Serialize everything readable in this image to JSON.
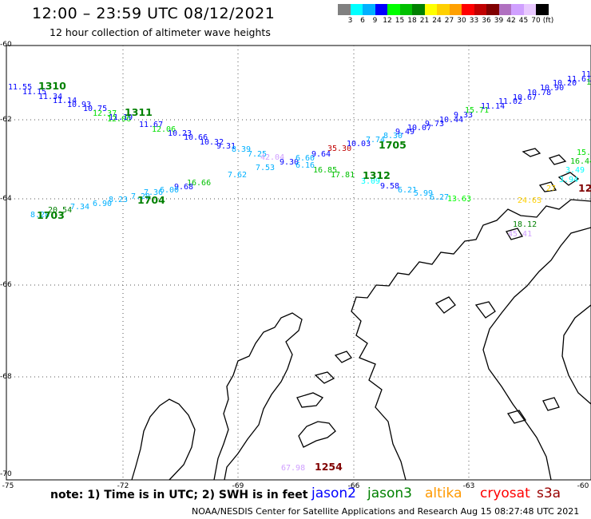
{
  "header": {
    "title": "12:00 – 23:59 UTC 08/12/2021",
    "subtitle": "12 hour collection of altimeter wave heights"
  },
  "colorbar": {
    "colors": [
      "#808080",
      "#00ffff",
      "#00b0ff",
      "#0000ff",
      "#00ff00",
      "#00c000",
      "#008000",
      "#ffff00",
      "#ffd000",
      "#ffa000",
      "#ff0000",
      "#c00000",
      "#800000",
      "#b070c0",
      "#d0a0ff",
      "#e8c8ff",
      "#000000"
    ],
    "labels": [
      "3",
      "6",
      "9",
      "12",
      "15",
      "18",
      "21",
      "24",
      "27",
      "30",
      "33",
      "36",
      "39",
      "42",
      "45",
      "70",
      "(ft)"
    ]
  },
  "axes": {
    "lat_labels": [
      "-60",
      "-62",
      "-64",
      "-66",
      "-68",
      "-70"
    ],
    "lon_labels": [
      "-75",
      "-72",
      "-69",
      "-66",
      "-63",
      "-60"
    ]
  },
  "observations": [
    {
      "text": "11.55",
      "color": "#0000ff"
    },
    {
      "text": "11.15",
      "color": "#0000ff"
    },
    {
      "text": "11.34",
      "color": "#0000ff"
    },
    {
      "text": "11.14",
      "color": "#0000ff"
    },
    {
      "text": "10.93",
      "color": "#0000ff"
    },
    {
      "text": "10.75",
      "color": "#0000ff"
    },
    {
      "text": "12.37",
      "color": "#00e000"
    },
    {
      "text": "12.06",
      "color": "#00e000"
    },
    {
      "text": "11.19",
      "color": "#0000ff"
    },
    {
      "text": "11.67",
      "color": "#0000ff"
    },
    {
      "text": "12.06",
      "color": "#00e000"
    },
    {
      "text": "10.23",
      "color": "#0000ff"
    },
    {
      "text": "10.66",
      "color": "#0000ff"
    },
    {
      "text": "10.32",
      "color": "#0000ff"
    },
    {
      "text": "9.31",
      "color": "#0000ff"
    },
    {
      "text": "8.39",
      "color": "#00b0ff"
    },
    {
      "text": "7.25",
      "color": "#00b0ff"
    },
    {
      "text": "42.04",
      "color": "#d0a0ff"
    },
    {
      "text": "9.30",
      "color": "#0000ff"
    },
    {
      "text": "6.60",
      "color": "#00b0ff"
    },
    {
      "text": "9.64",
      "color": "#0000ff"
    },
    {
      "text": "35.30",
      "color": "#c00000"
    },
    {
      "text": "10.03",
      "color": "#0000ff"
    },
    {
      "text": "7.74",
      "color": "#00b0ff"
    },
    {
      "text": "8.30",
      "color": "#00b0ff"
    },
    {
      "text": "9.49",
      "color": "#0000ff"
    },
    {
      "text": "10.07",
      "color": "#0000ff"
    },
    {
      "text": "9.73",
      "color": "#0000ff"
    },
    {
      "text": "10.44",
      "color": "#0000ff"
    },
    {
      "text": "9.33",
      "color": "#0000ff"
    },
    {
      "text": "15.71",
      "color": "#00e000"
    },
    {
      "text": "11.14",
      "color": "#0000ff"
    },
    {
      "text": "11.02",
      "color": "#0000ff"
    },
    {
      "text": "10.67",
      "color": "#0000ff"
    },
    {
      "text": "10.78",
      "color": "#0000ff"
    },
    {
      "text": "10.90",
      "color": "#0000ff"
    },
    {
      "text": "10.20",
      "color": "#0000ff"
    },
    {
      "text": "11.61",
      "color": "#0000ff"
    },
    {
      "text": "11",
      "color": "#0000ff"
    },
    {
      "text": "7.53",
      "color": "#00b0ff"
    },
    {
      "text": "6.16",
      "color": "#00b0ff"
    },
    {
      "text": "16.85",
      "color": "#00c000"
    },
    {
      "text": "17.81",
      "color": "#00c000"
    },
    {
      "text": "7.62",
      "color": "#00b0ff"
    },
    {
      "text": "3.09",
      "color": "#00ffff"
    },
    {
      "text": "9.58",
      "color": "#0000ff"
    },
    {
      "text": "6.21",
      "color": "#00b0ff"
    },
    {
      "text": "5.99",
      "color": "#00b0ff"
    },
    {
      "text": "6.27",
      "color": "#00b0ff"
    },
    {
      "text": "13.63",
      "color": "#00ff00"
    },
    {
      "text": "16.66",
      "color": "#00c000"
    },
    {
      "text": "9.68",
      "color": "#0000ff"
    },
    {
      "text": "6.00",
      "color": "#00b0ff"
    },
    {
      "text": "7.36",
      "color": "#00b0ff"
    },
    {
      "text": "7.20",
      "color": "#00b0ff"
    },
    {
      "text": "8.23",
      "color": "#00b0ff"
    },
    {
      "text": "6.90",
      "color": "#00b0ff"
    },
    {
      "text": "7.34",
      "color": "#00b0ff"
    },
    {
      "text": "20.54",
      "color": "#008000"
    },
    {
      "text": "8.28",
      "color": "#00b0ff"
    },
    {
      "text": "15.9",
      "color": "#00e000"
    },
    {
      "text": "16.44",
      "color": "#00c000"
    },
    {
      "text": "3.49",
      "color": "#00ffff"
    },
    {
      "text": "3.94",
      "color": "#00ffff"
    },
    {
      "text": "27",
      "color": "#ffd000"
    },
    {
      "text": "24.63",
      "color": "#ffd000"
    },
    {
      "text": "18.12",
      "color": "#008000"
    },
    {
      "text": "45.41",
      "color": "#d0a0ff"
    },
    {
      "text": "67.98",
      "color": "#d0a0ff"
    },
    {
      "text": "16",
      "color": "#00c000"
    }
  ],
  "pass_times": [
    {
      "text": "1310",
      "color": "#008000"
    },
    {
      "text": "1311",
      "color": "#008000"
    },
    {
      "text": "1705",
      "color": "#008000"
    },
    {
      "text": "1312",
      "color": "#008000"
    },
    {
      "text": "1704",
      "color": "#008000"
    },
    {
      "text": "1703",
      "color": "#008000"
    },
    {
      "text": "12",
      "color": "#800000"
    },
    {
      "text": "1254",
      "color": "#800000"
    }
  ],
  "footer": {
    "note": "note:  1) Time is in UTC; 2) SWH is in feet",
    "satellites": [
      {
        "name": "jason2",
        "color": "#0000ff"
      },
      {
        "name": "jason3",
        "color": "#008000"
      },
      {
        "name": "altika",
        "color": "#ff9900"
      },
      {
        "name": "cryosat",
        "color": "#ff0000"
      },
      {
        "name": "s3a",
        "color": "#990000"
      }
    ],
    "credit": "NOAA/NESDIS Center for Satellite Applications and Research    Aug 15 08:27:48 UTC 2021"
  }
}
